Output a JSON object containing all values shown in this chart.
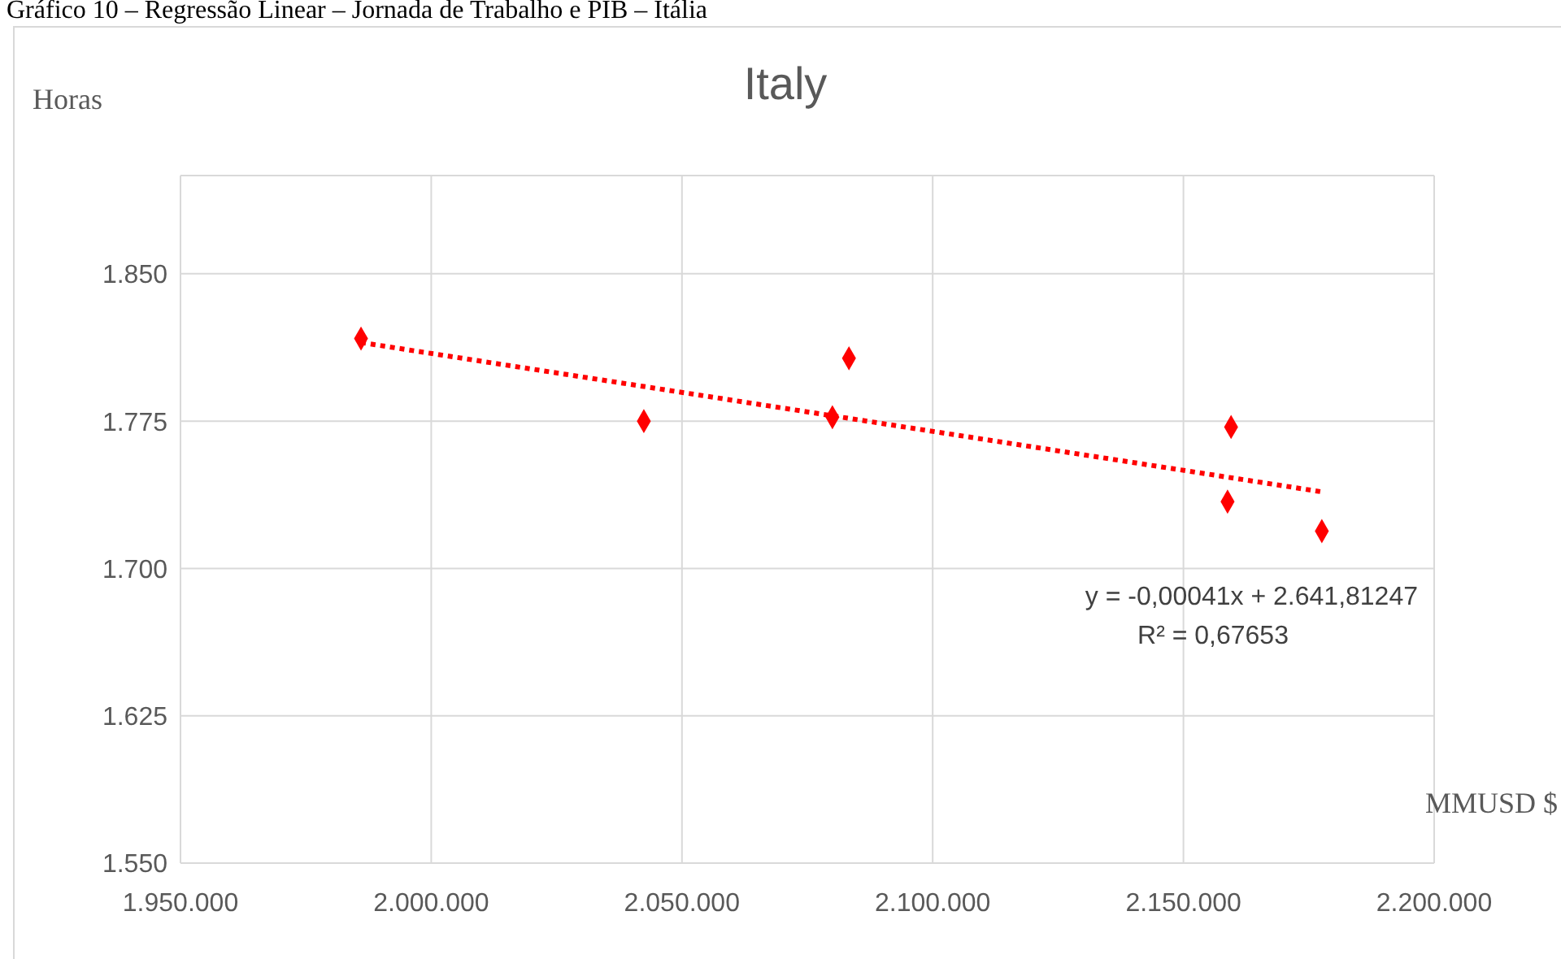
{
  "chart_data": {
    "type": "scatter",
    "title": "Italy",
    "ylabel": "Horas",
    "xlabel": "MMUSD $",
    "annotations": [
      "Gráfico 10 – Regressão Linear – Jornada de Trabalho e PIB – Itália",
      "y = -0,00041x + 2.641,81247",
      "R² = 0,67653"
    ],
    "xlim": [
      1950000,
      2200000
    ],
    "xticks": [
      {
        "value": 1950000,
        "label": "1.950.000"
      },
      {
        "value": 2000000,
        "label": "2.000.000"
      },
      {
        "value": 2050000,
        "label": "2.050.000"
      },
      {
        "value": 2100000,
        "label": "2.100.000"
      },
      {
        "value": 2150000,
        "label": "2.150.000"
      },
      {
        "value": 2200000,
        "label": "2.200.000"
      }
    ],
    "ylim": [
      1550,
      1900
    ],
    "yticks": [
      {
        "value": 1550,
        "label": "1.550"
      },
      {
        "value": 1625,
        "label": "1.625"
      },
      {
        "value": 1700,
        "label": "1.700"
      },
      {
        "value": 1775,
        "label": "1.775"
      },
      {
        "value": 1850,
        "label": "1.850"
      }
    ],
    "grid": true,
    "legend": false,
    "series": [
      {
        "color": "#ff0000",
        "marker": "diamond",
        "x": [
          1986000,
          2042400,
          2080000,
          2083300,
          2159500,
          2158800,
          2177600
        ],
        "values": [
          1817,
          1775,
          1777,
          1807,
          1772,
          1734,
          1719
        ]
      },
      {
        "type": "line",
        "color": "#ff0000",
        "marker": "none",
        "line_style": "dotted",
        "x": [
          1986000,
          2177600
        ],
        "values": [
          1815,
          1739
        ]
      }
    ]
  }
}
